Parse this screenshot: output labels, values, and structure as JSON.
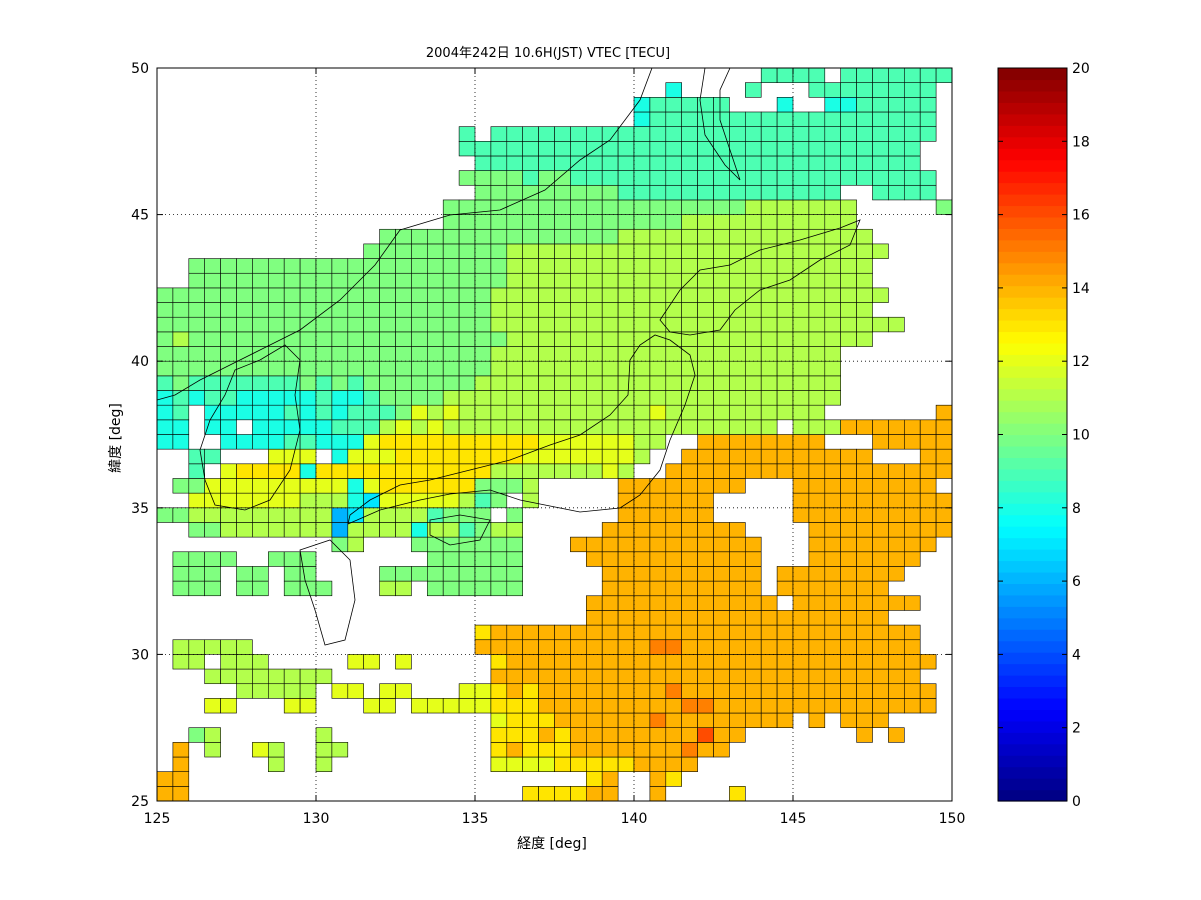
{
  "chart_data": {
    "type": "heatmap",
    "title": "2004年242日 10.6H(JST) VTEC [TECU]",
    "xlabel": "経度 [deg]",
    "ylabel": "緯度 [deg]",
    "xlim": [
      125,
      150
    ],
    "ylim": [
      25,
      50
    ],
    "x_ticks": [
      125,
      130,
      135,
      140,
      145,
      150
    ],
    "y_ticks": [
      25,
      30,
      35,
      40,
      45,
      50
    ],
    "grid": true,
    "cell_size_deg": 0.5,
    "colorbar": {
      "colormap": "jet",
      "range": [
        0,
        20
      ],
      "ticks": [
        0,
        2,
        4,
        6,
        8,
        10,
        12,
        14,
        16,
        18,
        20
      ],
      "placement": "right"
    },
    "rows_lat_start": 25.0,
    "rows_lon_start": 125.0,
    "rows_note_codes": "row i covers latitude rows_lat_start + 0.5*i; char j covers longitude rows_lon_start + 0.5*j; '.'=no data, '0'-'9'=0-9 TECU, A-K=10-20 TECU",
    "rows": [
      "EE.....................DDDDEE..E....D.............",
      "EE.........................DE..ED.................",
      ".E.....B..B..........CCCCDDDDDEEEE................",
      ".E.B..CB..BB.........DEDDDEEEEEEEFEE..............",
      "..AB......B..........DDDEDEEEEEEEEGEE.......E.E...",
      ".....................CDDDEEEEEEFEEEEEEEE.E.EEE....",
      "...CC...CC...CC.CCCCCDDDEEEEEEEEEFFEEEEEEEEEEEEEE.",
      ".....BBBBB.CC.CC...CCDEDEEEEEEEEFEEEEEEEEEEEEEEEE.",
      "...BBBBBBBB..........EEEEEEEEEEEEEEEEEEEEEEEEEEE..",
      ".BB.BBB.....CC.C.....DEEEEEEEEEEEEEEEEEEEEEEEEEEE.",
      ".BBBBB..............EEEEEEEEEEEFFEEEEEEEEEEEEEEE..",
      "....................DEEEEEEEEEEEEEEEEEEEEEEEEEEE..",
      "...........................EEEEEEEEEEEEEEEEEEE....",
      "...........................EEEEEEEEEEEE.EEEEEEEE..",
      ".AAA.AA.AAA...BB.AAAAAA.....EEEEEEEEEE.EEEEEEE....",
      ".AAA.AA.AA....AAAAAAAAA.....EEEEEEEEEE.EEEEEEEE...",
      ".AAAA..AAA.......AAAAAA....EEEEEEEEEEE...EEEEEEE..",
      "...........AB...AAAAAAA...EEEEEEEEEEEE...EEEEEEEE.",
      "..AABBBBBBB6BBBB8BB9ABB.....EEEEEEEEE....EEEEEEEEE",
      "AABBBBBBBBB67BBBB9AAA.A......EEEEEE.....EEEEEEEEEE",
      "..CCCCCCCBBB87CCCCCB9A.B.....EEEEEE.....EEEEEEEEEE",
      ".AACCCCCCCCC8CDDDDDDAAAB.....EEEEEEEE...EEEEEEEEE.",
      "..9.CDDDD8DDDDDDDDDDDBBBBBBBCB..EEEEEEEEEEEEEEEEEE",
      "..99...CCC.8CCCDDDDDDDDCCCCCCCB..EEEEEEEEEEEE...EE",
      "88..888899888CDDDDDDDDDDCCCCCCBB..EEEEEEEE...EEEEE",
      "88.88.88888999BCBCBBBBBBBBBBBBBBBBBBBBB.BBBEEEEEEE",
      "89.888889898999ACBCBBBBBBBBBBBBCBBBBBBBBBB.......E",
      "89899888889889AAAABBBBBBBBBBBBBBBBBBBBBBBBB.......",
      "9A9999999A9A9AAAAAAABBBBBBBBBBBBBBBBBBBBBBB.......",
      "AAAAAAAAAAAAAAAAAAAAABBBBBBBBBBBBBBBBBBBBBB.......",
      "AAAAAAAAAAAAAAAAAAAAABBBBBBBBBBBBBBBBBBBBBB.......",
      "ABAAAAAAAAAAAAAAAAAAAABBBBBBBBBBBBBBBBBBBBBBB.....",
      "AAAAAAAAAAAAAAAAAAAAABBBBBBBBBBBBBBBBBBBBBBBBBB...",
      "AAAAAAAAAAAAAAAAAAAAABBBBBBBBBBBBBBBBBBBBBBBB.....",
      "AAAAAAAAAAAAAAAAAAAAABBBBBBBBBBBBBBBBBBBBBBBBB....",
      "..AAAAAAAAAAAAAAAAAAAABBBBBBBBBBBBBBBBBBBBBBB.....",
      "..AAAAAAAAAAAAAAAAAAAABBBBBBBBBBBBBBBBBBBBBBB.....",
      ".............AAAAAAAAABBBBBBBBBBBBBBBBBBBBBBBB....",
      "..............AAAAAAAAAAAAAAABBBBBBBBBBBBBBBB.....",
      "..................AAAAAAAAAAAAAAABBBBBBBBBBB......",
      "..................AAAAAAAAAAAAAAAAAAABBBBBBB.....A",
      "....................AAAAAAAAA99999999999999..9999.",
      "...................AAAA9AA99999999999999999999999.",
      "....................9999999999999999999999999999..",
      "...................99999999999999999999999999999..",
      "...................9.9999999999999999999999999999.",
      "..............................8999999999999999999.",
      "..............................899999...8..8899999.",
      "................................8....9...99999999.",
      "......................................9999.9999999"
    ]
  }
}
